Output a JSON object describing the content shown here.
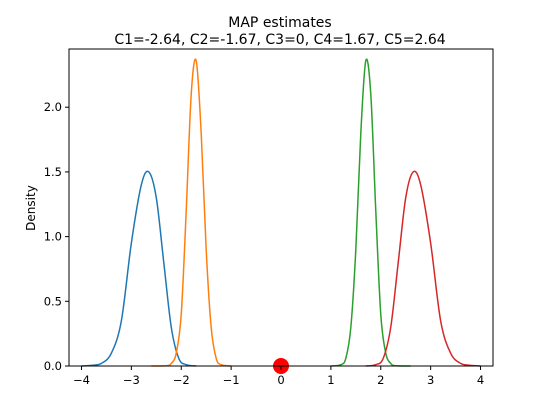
{
  "chart_data": {
    "type": "line",
    "title": "MAP estimates",
    "subtitle": "C1=-2.64, C2=-1.67, C3=0, C4=1.67, C5=2.64",
    "xlabel": "",
    "ylabel": "Density",
    "xlim": [
      -4.25,
      4.25
    ],
    "ylim": [
      0,
      2.45
    ],
    "xticks": [
      -4,
      -3,
      -2,
      -1,
      0,
      1,
      2,
      3,
      4
    ],
    "xtick_labels": [
      "−4",
      "−3",
      "−2",
      "−1",
      "0",
      "1",
      "2",
      "3",
      "4"
    ],
    "yticks": [
      0.0,
      0.5,
      1.0,
      1.5,
      2.0
    ],
    "ytick_labels": [
      "0.0",
      "0.5",
      "1.0",
      "1.5",
      "2.0"
    ],
    "grid": false,
    "series": [
      {
        "color": "#1f77b4",
        "points": [
          [
            -4.0,
            0.0
          ],
          [
            -3.8,
            0.005
          ],
          [
            -3.6,
            0.02
          ],
          [
            -3.4,
            0.1
          ],
          [
            -3.2,
            0.35
          ],
          [
            -3.0,
            0.95
          ],
          [
            -2.8,
            1.4
          ],
          [
            -2.65,
            1.5
          ],
          [
            -2.5,
            1.3
          ],
          [
            -2.35,
            0.8
          ],
          [
            -2.2,
            0.3
          ],
          [
            -2.05,
            0.06
          ],
          [
            -1.9,
            0.01
          ],
          [
            -1.7,
            0.0
          ]
        ]
      },
      {
        "color": "#ff7f0e",
        "points": [
          [
            -2.6,
            0.0
          ],
          [
            -2.3,
            0.002
          ],
          [
            -2.2,
            0.02
          ],
          [
            -2.1,
            0.1
          ],
          [
            -2.0,
            0.4
          ],
          [
            -1.9,
            1.2
          ],
          [
            -1.8,
            2.1
          ],
          [
            -1.7,
            2.36
          ],
          [
            -1.6,
            1.8
          ],
          [
            -1.5,
            0.9
          ],
          [
            -1.4,
            0.3
          ],
          [
            -1.3,
            0.06
          ],
          [
            -1.2,
            0.01
          ],
          [
            -1.0,
            0.0
          ]
        ]
      },
      {
        "color": "#2ca02c",
        "points": [
          [
            1.0,
            0.0
          ],
          [
            1.2,
            0.01
          ],
          [
            1.3,
            0.06
          ],
          [
            1.4,
            0.3
          ],
          [
            1.5,
            0.9
          ],
          [
            1.6,
            1.8
          ],
          [
            1.7,
            2.36
          ],
          [
            1.8,
            2.1
          ],
          [
            1.9,
            1.2
          ],
          [
            2.0,
            0.4
          ],
          [
            2.1,
            0.1
          ],
          [
            2.2,
            0.02
          ],
          [
            2.3,
            0.002
          ],
          [
            2.6,
            0.0
          ]
        ]
      },
      {
        "color": "#d62728",
        "points": [
          [
            1.7,
            0.0
          ],
          [
            1.9,
            0.01
          ],
          [
            2.05,
            0.06
          ],
          [
            2.2,
            0.3
          ],
          [
            2.35,
            0.8
          ],
          [
            2.5,
            1.3
          ],
          [
            2.65,
            1.5
          ],
          [
            2.8,
            1.4
          ],
          [
            3.0,
            0.95
          ],
          [
            3.2,
            0.35
          ],
          [
            3.4,
            0.1
          ],
          [
            3.6,
            0.02
          ],
          [
            3.8,
            0.005
          ],
          [
            4.0,
            0.0
          ]
        ]
      }
    ],
    "marker": {
      "x": 0,
      "y": 0.0,
      "color": "#ff0000"
    }
  }
}
